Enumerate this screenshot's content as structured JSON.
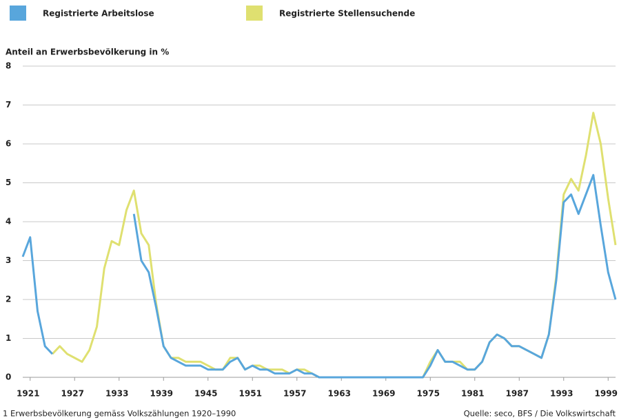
{
  "chart_data": {
    "type": "line",
    "y_axis_label": "Anteil an Erwerbsbevölkerung in %",
    "footnote": "1  Erwerbsbevölkerung gemäss Volkszählungen 1920–1990",
    "source": "Quelle: seco, BFS / Die Volkswirtschaft",
    "x": [
      1920,
      1921,
      1922,
      1923,
      1924,
      1925,
      1926,
      1927,
      1928,
      1929,
      1930,
      1931,
      1932,
      1933,
      1934,
      1935,
      1936,
      1937,
      1938,
      1939,
      1940,
      1941,
      1942,
      1943,
      1944,
      1945,
      1946,
      1947,
      1948,
      1949,
      1950,
      1951,
      1952,
      1953,
      1954,
      1955,
      1956,
      1957,
      1958,
      1959,
      1960,
      1961,
      1962,
      1963,
      1964,
      1965,
      1966,
      1967,
      1968,
      1969,
      1970,
      1971,
      1972,
      1973,
      1974,
      1975,
      1976,
      1977,
      1978,
      1979,
      1980,
      1981,
      1982,
      1983,
      1984,
      1985,
      1986,
      1987,
      1988,
      1989,
      1990,
      1991,
      1992,
      1993,
      1994,
      1995,
      1996,
      1997,
      1998,
      1999,
      2000
    ],
    "series": [
      {
        "name": "Registrierte Arbeitslose",
        "color": "#58a6dc",
        "values": [
          3.1,
          3.6,
          1.7,
          0.8,
          0.6,
          null,
          null,
          null,
          null,
          null,
          null,
          null,
          null,
          null,
          null,
          4.2,
          3.0,
          2.7,
          1.8,
          0.8,
          0.5,
          0.4,
          0.3,
          0.3,
          0.3,
          0.2,
          0.2,
          0.2,
          0.4,
          0.5,
          0.2,
          0.3,
          0.2,
          0.2,
          0.1,
          0.1,
          0.1,
          0.2,
          0.1,
          0.1,
          0,
          0,
          0,
          0,
          0,
          0,
          0,
          0,
          0,
          0,
          0,
          0,
          0,
          0,
          0,
          0.3,
          0.7,
          0.4,
          0.4,
          0.3,
          0.2,
          0.2,
          0.4,
          0.9,
          1.1,
          1.0,
          0.8,
          0.8,
          0.7,
          0.6,
          0.5,
          1.1,
          2.5,
          4.5,
          4.7,
          4.2,
          4.7,
          5.2,
          3.9,
          2.7,
          2.0
        ]
      },
      {
        "name": "Registrierte Stellensuchende",
        "color": "#dfe070",
        "values": [
          null,
          null,
          null,
          null,
          0.6,
          0.8,
          0.6,
          0.5,
          0.4,
          0.7,
          1.3,
          2.8,
          3.5,
          3.4,
          4.3,
          4.8,
          3.7,
          3.4,
          1.9,
          0.8,
          0.5,
          0.5,
          0.4,
          0.4,
          0.4,
          0.3,
          0.2,
          0.2,
          0.5,
          0.5,
          0.2,
          0.3,
          0.3,
          0.2,
          0.2,
          0.2,
          0.1,
          0.2,
          0.2,
          0.1,
          0,
          0,
          0,
          0,
          0,
          0,
          0,
          0,
          0,
          0,
          0,
          0,
          0,
          0,
          0,
          0.4,
          0.7,
          0.4,
          0.4,
          0.4,
          0.2,
          0.2,
          0.4,
          0.9,
          1.1,
          1.0,
          0.8,
          0.8,
          0.7,
          0.6,
          0.5,
          1.1,
          2.6,
          4.7,
          5.1,
          4.8,
          5.7,
          6.8,
          6.0,
          4.6,
          3.4
        ]
      }
    ],
    "xlim": [
      1920,
      2000
    ],
    "xticks": [
      1921,
      1927,
      1933,
      1939,
      1945,
      1951,
      1957,
      1963,
      1969,
      1975,
      1981,
      1987,
      1993,
      1999
    ],
    "ylim": [
      0,
      8
    ],
    "yticks": [
      0,
      1,
      2,
      3,
      4,
      5,
      6,
      7,
      8
    ],
    "grid": true
  }
}
